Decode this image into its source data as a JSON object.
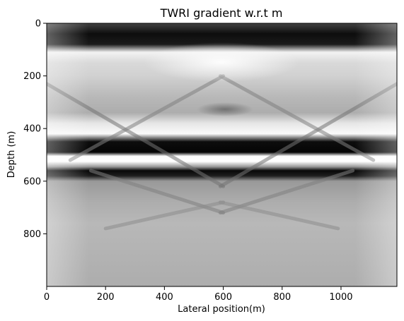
{
  "chart_data": {
    "type": "heatmap",
    "title": "TWRI gradient w.r.t m",
    "xlabel": "Lateral position(m)",
    "ylabel": "Depth (m)",
    "xlim": [
      0,
      1190
    ],
    "ylim": [
      0,
      1000
    ],
    "y_inverted": true,
    "colormap": "greys",
    "xticks": [
      0,
      200,
      400,
      600,
      800,
      1000
    ],
    "yticks": [
      0,
      200,
      400,
      600,
      800
    ],
    "xtick_labels": [
      "0",
      "200",
      "400",
      "600",
      "800",
      "1000"
    ],
    "ytick_labels": [
      "0",
      "200",
      "400",
      "600",
      "800"
    ],
    "grid": false,
    "bands": [
      {
        "depth": 0,
        "shade": 0.25
      },
      {
        "depth": 40,
        "shade": 0.05
      },
      {
        "depth": 80,
        "shade": 0.1
      },
      {
        "depth": 110,
        "shade": 0.95
      },
      {
        "depth": 150,
        "shade": 0.85
      },
      {
        "depth": 200,
        "shade": 0.82
      },
      {
        "depth": 280,
        "shade": 0.72
      },
      {
        "depth": 340,
        "shade": 0.68
      },
      {
        "depth": 380,
        "shade": 0.9
      },
      {
        "depth": 420,
        "shade": 0.98
      },
      {
        "depth": 450,
        "shade": 0.05
      },
      {
        "depth": 490,
        "shade": 0.02
      },
      {
        "depth": 505,
        "shade": 0.99
      },
      {
        "depth": 525,
        "shade": 1.0
      },
      {
        "depth": 545,
        "shade": 0.6
      },
      {
        "depth": 560,
        "shade": 0.03
      },
      {
        "depth": 580,
        "shade": 0.12
      },
      {
        "depth": 600,
        "shade": 0.6
      },
      {
        "depth": 680,
        "shade": 0.68
      },
      {
        "depth": 760,
        "shade": 0.72
      },
      {
        "depth": 1000,
        "shade": 0.68
      }
    ],
    "diagonals": [
      {
        "from": [
          0,
          230
        ],
        "to": [
          600,
          620
        ],
        "shade": 0.45
      },
      {
        "from": [
          1190,
          230
        ],
        "to": [
          590,
          620
        ],
        "shade": 0.45
      },
      {
        "from": [
          80,
          520
        ],
        "to": [
          600,
          200
        ],
        "shade": 0.5
      },
      {
        "from": [
          1110,
          520
        ],
        "to": [
          590,
          200
        ],
        "shade": 0.5
      },
      {
        "from": [
          150,
          560
        ],
        "to": [
          600,
          720
        ],
        "shade": 0.5
      },
      {
        "from": [
          1040,
          560
        ],
        "to": [
          590,
          720
        ],
        "shade": 0.5
      },
      {
        "from": [
          200,
          780
        ],
        "to": [
          600,
          680
        ],
        "shade": 0.55
      },
      {
        "from": [
          990,
          780
        ],
        "to": [
          590,
          680
        ],
        "shade": 0.55
      }
    ]
  }
}
